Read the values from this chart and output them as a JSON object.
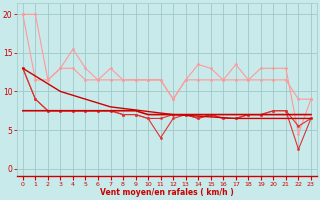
{
  "x": [
    0,
    1,
    2,
    3,
    4,
    5,
    6,
    7,
    8,
    9,
    10,
    11,
    12,
    13,
    14,
    15,
    16,
    17,
    18,
    19,
    20,
    21,
    22,
    23
  ],
  "line_light1": [
    20,
    20,
    11.5,
    13,
    15.5,
    13,
    11.5,
    13,
    11.5,
    11.5,
    11.5,
    11.5,
    9,
    11.5,
    13.5,
    13,
    11.5,
    13.5,
    11.5,
    13,
    13,
    13,
    4.5,
    9
  ],
  "line_light2": [
    20,
    11.5,
    11.5,
    13,
    13,
    11.5,
    11.5,
    11.5,
    11.5,
    11.5,
    11.5,
    11.5,
    9,
    11.5,
    11.5,
    11.5,
    11.5,
    11.5,
    11.5,
    11.5,
    11.5,
    11.5,
    9,
    9
  ],
  "line_med1": [
    13,
    9,
    7.5,
    7.5,
    7.5,
    7.5,
    7.5,
    7.5,
    7,
    7,
    6.5,
    6.5,
    7,
    7,
    6.5,
    7,
    6.5,
    6.5,
    7,
    7,
    7.5,
    7.5,
    5.5,
    6.5
  ],
  "line_med2": [
    13,
    9,
    7.5,
    7.5,
    7.5,
    7.5,
    7.5,
    7.5,
    7,
    7,
    6.5,
    4,
    6.5,
    7,
    6.5,
    7,
    6.5,
    6.5,
    7,
    7,
    7.5,
    7.5,
    2.5,
    6.5
  ],
  "line_dark_diagonal": [
    13,
    12.0,
    11.0,
    10.0,
    9.5,
    9.0,
    8.5,
    8.0,
    7.8,
    7.6,
    7.4,
    7.2,
    7.0,
    6.9,
    6.8,
    6.7,
    6.6,
    6.5,
    6.5,
    6.5,
    6.5,
    6.5,
    6.5,
    6.5
  ],
  "line_dark_flat": [
    7.5,
    7.5,
    7.5,
    7.5,
    7.5,
    7.5,
    7.5,
    7.5,
    7.5,
    7.5,
    7,
    7,
    7,
    7,
    7,
    7,
    7,
    7,
    7,
    7,
    7,
    7,
    7,
    7
  ],
  "color_dark": "#cc0000",
  "color_medium": "#dd3333",
  "color_light": "#ff9999",
  "bg_color": "#c8eaea",
  "grid_color": "#a0c8c8",
  "xlabel": "Vent moyen/en rafales ( km/h )",
  "yticks": [
    0,
    5,
    10,
    15,
    20
  ],
  "xticks": [
    0,
    1,
    2,
    3,
    4,
    5,
    6,
    7,
    8,
    9,
    10,
    11,
    12,
    13,
    14,
    15,
    16,
    17,
    18,
    19,
    20,
    21,
    22,
    23
  ],
  "ylim": [
    -1,
    21.5
  ],
  "xlim": [
    -0.5,
    23.5
  ]
}
